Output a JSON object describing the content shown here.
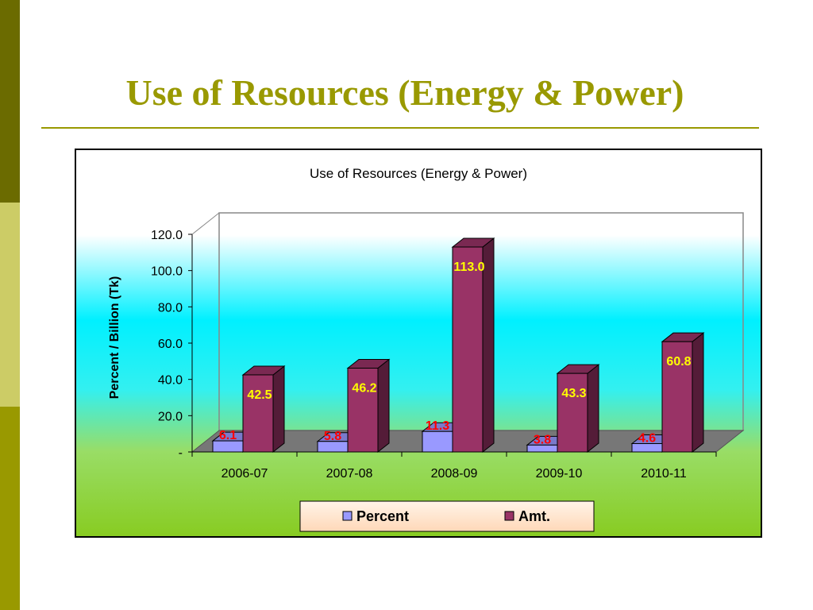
{
  "slide": {
    "title": "Use of Resources (Energy & Power)"
  },
  "colors": {
    "accent": "#999900",
    "percent_bar": "#9999ff",
    "amt_bar": "#993366",
    "percent_label": "#ff0000",
    "amt_label": "#ffff00"
  },
  "chart_data": {
    "type": "bar",
    "title": "Use of Resources (Energy & Power)",
    "xlabel": "",
    "ylabel": "Percent / Billion (Tk)",
    "categories": [
      "2006-07",
      "2007-08",
      "2008-09",
      "2009-10",
      "2010-11"
    ],
    "series": [
      {
        "name": "Percent",
        "values": [
          6.1,
          5.8,
          11.3,
          3.8,
          4.6
        ]
      },
      {
        "name": "Amt.",
        "values": [
          42.5,
          46.2,
          113.0,
          43.3,
          60.8
        ]
      }
    ],
    "ylim": [
      0,
      120
    ],
    "yticks": [
      "-",
      "20.0",
      "40.0",
      "60.0",
      "80.0",
      "100.0",
      "120.0"
    ],
    "data_labels": [
      [
        "6.1",
        "5.8",
        "11.3",
        "3.8",
        "4.6"
      ],
      [
        "42.5",
        "46.2",
        "113.0",
        "43.3",
        "60.8"
      ]
    ],
    "legend_position": "bottom",
    "three_d": true
  }
}
